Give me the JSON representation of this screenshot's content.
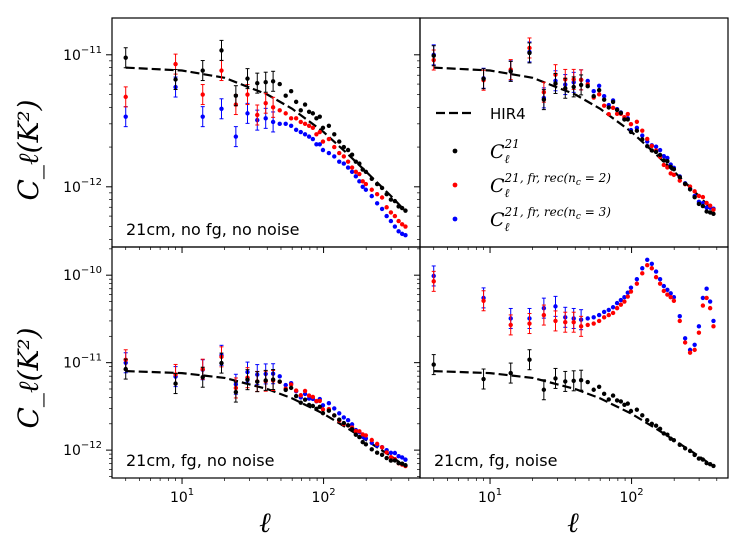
{
  "chart_data": {
    "type": "scatter",
    "layout": "2x2 grid, shared log x-axis and log y-axis per row",
    "xlabel": "ℓ",
    "ylabel": "C_ℓ(K²)",
    "xscale": "log",
    "yscale": "log",
    "xlim": [
      3.2,
      480
    ],
    "x_ticks": [
      "10¹",
      "10²"
    ],
    "colors": {
      "model": "#000000",
      "c21": "#000000",
      "nc2": "#ff0000",
      "nc3": "#0000ff"
    },
    "legend": {
      "placement": "top-right panel, center-left",
      "entries": [
        {
          "key": "model",
          "label": "HIR4",
          "style": "dashed-line"
        },
        {
          "key": "c21",
          "label_main": "C",
          "label_sub": "ℓ",
          "label_sup": "21",
          "style": "point"
        },
        {
          "key": "nc2",
          "label_main": "C",
          "label_sub": "ℓ",
          "label_sup": "21, fr, rec(n",
          "label_sup_sub": "c",
          "label_sup_end": " = 2)",
          "style": "point"
        },
        {
          "key": "nc3",
          "label_main": "C",
          "label_sub": "ℓ",
          "label_sup": "21, fr, rec(n",
          "label_sup_sub": "c",
          "label_sup_end": " = 3)",
          "style": "point"
        }
      ]
    },
    "rows": [
      {
        "ylim": [
          3.5e-13,
          1.9e-11
        ],
        "yticks": [
          {
            "v": 1e-11,
            "base": "10",
            "exp": "−11"
          },
          {
            "v": 1e-12,
            "base": "10",
            "exp": "−12"
          }
        ]
      },
      {
        "ylim": [
          4.8e-13,
          2.1e-10
        ],
        "yticks": [
          {
            "v": 1e-10,
            "base": "10",
            "exp": "−10"
          },
          {
            "v": 1e-11,
            "base": "10",
            "exp": "−11"
          },
          {
            "v": 1e-12,
            "base": "10",
            "exp": "−12"
          }
        ]
      }
    ],
    "panels": [
      {
        "label": "21cm, no fg, no noise",
        "row": 0,
        "col": 0,
        "variant": "nofg"
      },
      {
        "label": "21cm, no fg, no noise",
        "row": 0,
        "col": 1,
        "variant": "same"
      },
      {
        "label": "21cm, fg, no noise",
        "row": 1,
        "col": 0,
        "variant": "fg"
      },
      {
        "label": "21cm, fg, noise",
        "row": 1,
        "col": 1,
        "variant": "noise"
      }
    ],
    "model_curve": {
      "name": "HIR4",
      "ell": [
        4,
        10,
        20,
        40,
        60,
        100,
        150,
        200,
        300,
        380
      ],
      "cl": [
        8e-12,
        7.6e-12,
        6.7e-12,
        5e-12,
        3.9e-12,
        2.6e-12,
        1.75e-12,
        1.3e-12,
        8.5e-13,
        6.5e-13
      ]
    },
    "series_c21": {
      "ell": [
        4,
        9,
        14,
        19,
        24,
        29,
        34,
        39,
        44,
        49,
        54,
        59,
        64,
        69,
        74,
        79,
        84,
        89,
        94,
        99,
        109,
        119,
        129,
        139,
        149,
        159,
        169,
        179,
        189,
        199,
        219,
        239,
        259,
        279,
        299,
        319,
        339,
        359,
        379
      ],
      "cl": [
        9.5e-12,
        6.5e-12,
        7.6e-12,
        1.08e-11,
        4.9e-12,
        6.6e-12,
        6.1e-12,
        6.2e-12,
        6.3e-12,
        6e-12,
        4.9e-12,
        5.3e-12,
        4.4e-12,
        3.8e-12,
        4.2e-12,
        3.7e-12,
        3.6e-12,
        3.3e-12,
        3.4e-12,
        2.8e-12,
        2.9e-12,
        2.5e-12,
        2.2e-12,
        2e-12,
        1.9e-12,
        1.75e-12,
        1.55e-12,
        1.5e-12,
        1.35e-12,
        1.3e-12,
        1.15e-12,
        1.05e-12,
        9.8e-13,
        8.8e-13,
        8e-13,
        7.8e-13,
        7.1e-13,
        6.9e-13,
        6.6e-13
      ]
    },
    "series_nc2_nofg": {
      "ell": [
        4,
        9,
        14,
        19,
        24,
        29,
        34,
        39,
        44,
        49,
        54,
        59,
        64,
        69,
        74,
        79,
        84,
        89,
        94,
        99,
        109,
        119,
        129,
        139,
        149,
        159,
        169,
        179,
        189,
        199,
        219,
        239,
        259,
        279,
        299,
        319,
        339,
        359,
        379
      ],
      "cl": [
        4.8e-12,
        8.5e-12,
        5e-12,
        7.6e-12,
        4.2e-12,
        5e-12,
        3.5e-12,
        4.3e-12,
        4e-12,
        3.8e-12,
        3.6e-12,
        3.3e-12,
        3.3e-12,
        3.1e-12,
        3e-12,
        2.9e-12,
        2.8e-12,
        2.5e-12,
        2.6e-12,
        2.2e-12,
        2.3e-12,
        2e-12,
        1.8e-12,
        1.7e-12,
        1.55e-12,
        1.4e-12,
        1.3e-12,
        1.25e-12,
        1.1e-12,
        1.05e-12,
        9.5e-13,
        8.8e-13,
        8.3e-13,
        7e-13,
        6.4e-13,
        6e-13,
        5.5e-13,
        5.2e-13,
        5e-13
      ]
    },
    "series_nc3_nofg": {
      "ell": [
        4,
        9,
        14,
        19,
        24,
        29,
        34,
        39,
        44,
        49,
        54,
        59,
        64,
        69,
        74,
        79,
        84,
        89,
        94,
        99,
        109,
        119,
        129,
        139,
        149,
        159,
        169,
        179,
        189,
        199,
        219,
        239,
        259,
        279,
        299,
        319,
        339,
        359,
        379
      ],
      "cl": [
        3.4e-12,
        5.7e-12,
        3.4e-12,
        3.9e-12,
        2.4e-12,
        3.6e-12,
        3.2e-12,
        3.3e-12,
        3.1e-12,
        3e-12,
        3e-12,
        2.9e-12,
        2.7e-12,
        2.6e-12,
        2.5e-12,
        2.4e-12,
        2.3e-12,
        2.1e-12,
        2.1e-12,
        1.9e-12,
        1.8e-12,
        1.7e-12,
        1.55e-12,
        1.5e-12,
        1.4e-12,
        1.3e-12,
        1.2e-12,
        1.1e-12,
        1e-12,
        9.5e-13,
        8.5e-13,
        7.5e-13,
        6.8e-13,
        6e-13,
        5.5e-13,
        5e-13,
        4.6e-13,
        4.4e-13,
        4.3e-13
      ]
    },
    "series_nc2_noise": {
      "ell": [
        4,
        9,
        14,
        19,
        24,
        29,
        34,
        39,
        44,
        49,
        54,
        59,
        64,
        69,
        74,
        79,
        84,
        89,
        94,
        99,
        109,
        119,
        129,
        139,
        149,
        159,
        169,
        179,
        189,
        199,
        219,
        239,
        259,
        279,
        299,
        319,
        339,
        359,
        379
      ],
      "cl": [
        8.5e-11,
        5.1e-11,
        2.7e-11,
        2.8e-11,
        3.5e-11,
        3e-11,
        2.9e-11,
        2.9e-11,
        2.6e-11,
        2.7e-11,
        2.8e-11,
        3e-11,
        3.3e-11,
        3.5e-11,
        3.7e-11,
        4.2e-11,
        4.6e-11,
        5e-11,
        5.7e-11,
        6.5e-11,
        8e-11,
        1.05e-10,
        1.3e-10,
        1.2e-10,
        9.5e-11,
        8e-11,
        6.6e-11,
        6e-11,
        5.6e-11,
        5.1e-11,
        3e-11,
        1.7e-11,
        1.3e-11,
        1.4e-11,
        2.2e-11,
        4.5e-11,
        5.5e-11,
        4.2e-11,
        2.6e-11
      ]
    },
    "series_nc3_noise": {
      "ell": [
        4,
        9,
        14,
        19,
        24,
        29,
        34,
        39,
        44,
        49,
        54,
        59,
        64,
        69,
        74,
        79,
        84,
        89,
        94,
        99,
        109,
        119,
        129,
        139,
        149,
        159,
        169,
        179,
        189,
        199,
        219,
        239,
        259,
        279,
        299,
        319,
        339,
        359,
        379
      ],
      "cl": [
        9.8e-11,
        5.5e-11,
        3.2e-11,
        3.2e-11,
        4.2e-11,
        4.4e-11,
        3.3e-11,
        3.2e-11,
        3.1e-11,
        3.2e-11,
        3.3e-11,
        3.5e-11,
        3.8e-11,
        4e-11,
        4.3e-11,
        4.8e-11,
        5.2e-11,
        5.6e-11,
        6.3e-11,
        7.2e-11,
        9e-11,
        1.2e-10,
        1.5e-10,
        1.35e-10,
        1.1e-10,
        9e-11,
        7.5e-11,
        6.8e-11,
        6.2e-11,
        5.6e-11,
        3.4e-11,
        1.9e-11,
        1.4e-11,
        1.6e-11,
        2.6e-11,
        5.5e-11,
        7e-11,
        5e-11,
        3e-11
      ]
    }
  }
}
